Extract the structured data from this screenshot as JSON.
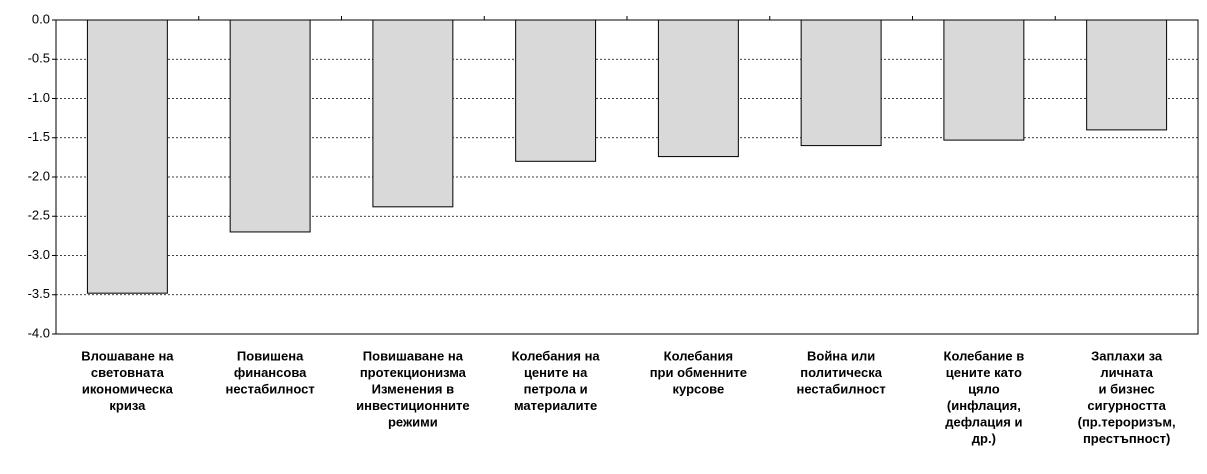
{
  "chart_data": {
    "type": "bar",
    "categories": [
      [
        "Влошаване на",
        "световната",
        "икономическа",
        "криза"
      ],
      [
        "Повишена",
        "финансова",
        "нестабилност"
      ],
      [
        "Повишаване на",
        "протекционизма",
        "Изменения в",
        "инвестиционните",
        "режими"
      ],
      [
        "Колебания на",
        "цените на",
        "петрола и",
        "материалите"
      ],
      [
        "Колебания",
        "при обменните",
        "курсове"
      ],
      [
        "Война или",
        "политическа",
        "нестабилност"
      ],
      [
        "Колебание в",
        "цените като",
        "цяло",
        "(инфлация,",
        "дефлация и",
        "др.)"
      ],
      [
        "Заплахи за",
        "личната",
        "и бизнес",
        "сигурността",
        "(пр.тероризъм,",
        "престъпност)"
      ]
    ],
    "values": [
      -3.48,
      -2.7,
      -2.38,
      -1.8,
      -1.74,
      -1.6,
      -1.53,
      -1.4
    ],
    "color": "#d9d9d9",
    "ylim": [
      -4,
      0
    ],
    "yticks": [
      {
        "value": 0,
        "label": "0.0"
      },
      -0.5,
      {
        "value": -1,
        "label": "-1.0"
      },
      -1.5,
      {
        "value": -2,
        "label": "-2.0"
      },
      -2.5,
      {
        "value": -3,
        "label": "-3.0"
      },
      -3.5,
      {
        "value": -4,
        "label": "-4.0"
      }
    ],
    "grid": true
  }
}
